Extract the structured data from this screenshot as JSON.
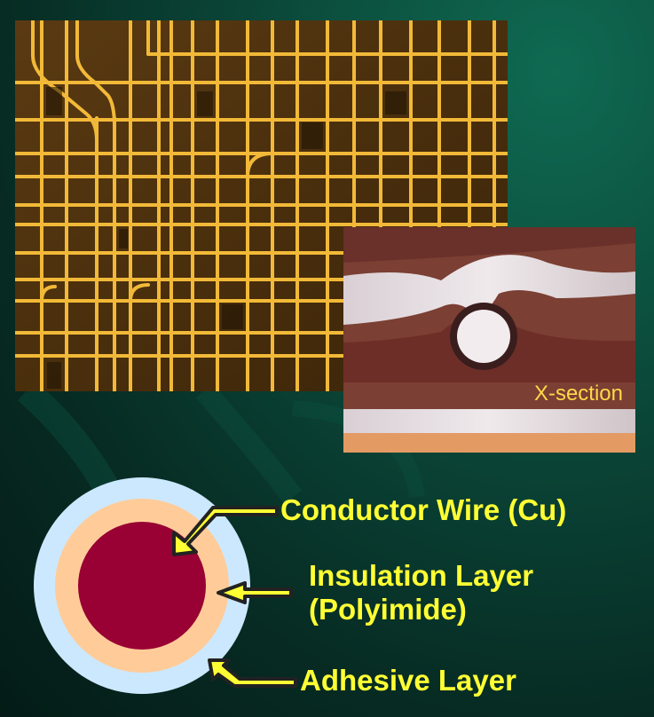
{
  "photos": {
    "xsection_label": "X-section"
  },
  "diagram": {
    "layers": [
      {
        "name": "conductor",
        "color": "#990033"
      },
      {
        "name": "insulation",
        "color": "#ffcc99"
      },
      {
        "name": "adhesive",
        "color": "#cce8ff"
      }
    ],
    "labels": {
      "conductor": "Conductor Wire (Cu)",
      "insulation_line1": "Insulation Layer",
      "insulation_line2": "(Polyimide)",
      "adhesive": "Adhesive Layer"
    },
    "arrow_color": "#ffff33"
  }
}
